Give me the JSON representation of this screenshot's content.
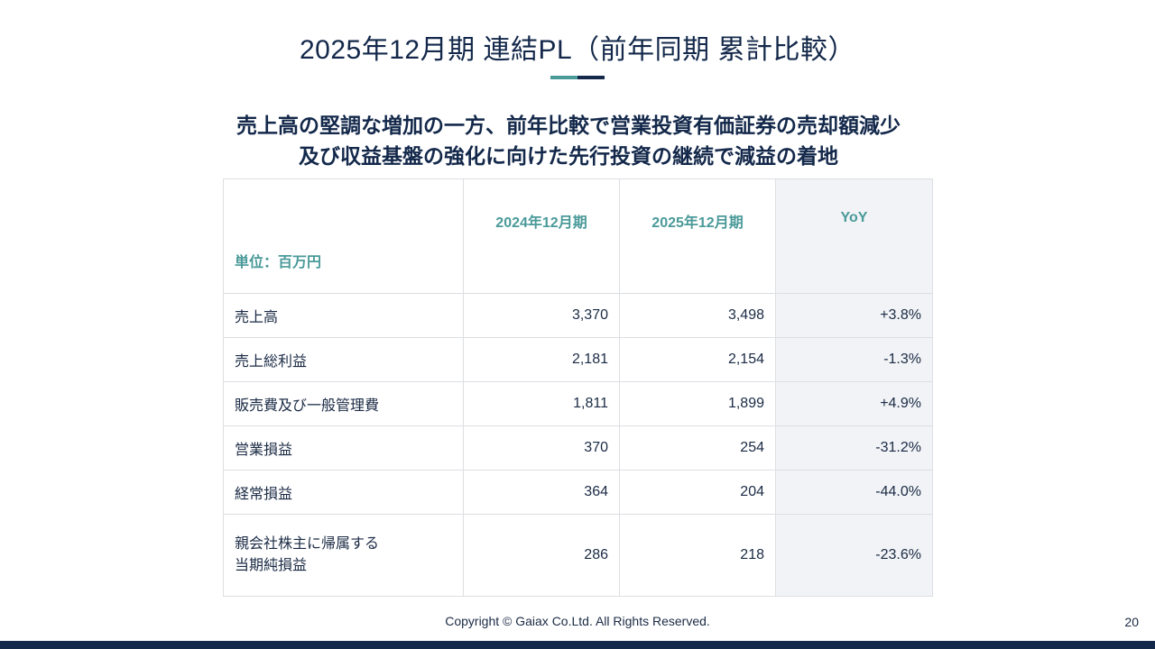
{
  "slide": {
    "title": "2025年12月期 連結PL（前年同期 累計比較）",
    "subtitle_line1": "売上高の堅調な増加の一方、前年比較で営業投資有価証券の売却額減少",
    "subtitle_line2": "及び収益基盤の強化に向けた先行投資の継続で減益の着地",
    "colors": {
      "navy": "#13284a",
      "teal": "#4a9a99",
      "yoy_bg": "#f1f3f6"
    }
  },
  "table": {
    "unit_label": "単位：百万円",
    "headers": [
      "2024年12月期",
      "2025年12月期",
      "YoY"
    ],
    "rows": [
      {
        "label": "売上高",
        "v2024": "3,370",
        "v2025": "3,498",
        "yoy": "+3.8%"
      },
      {
        "label": "売上総利益",
        "v2024": "2,181",
        "v2025": "2,154",
        "yoy": "-1.3%"
      },
      {
        "label": "販売費及び一般管理費",
        "v2024": "1,811",
        "v2025": "1,899",
        "yoy": "+4.9%"
      },
      {
        "label": "営業損益",
        "v2024": "370",
        "v2025": "254",
        "yoy": "-31.2%"
      },
      {
        "label": "経常損益",
        "v2024": "364",
        "v2025": "204",
        "yoy": "-44.0%"
      },
      {
        "label": "親会社株主に帰属する\n当期純損益",
        "v2024": "286",
        "v2025": "218",
        "yoy": "-23.6%"
      }
    ]
  },
  "footer": {
    "copyright": "Copyright © Gaiax Co.Ltd. All Rights Reserved.",
    "page_number": "20"
  }
}
